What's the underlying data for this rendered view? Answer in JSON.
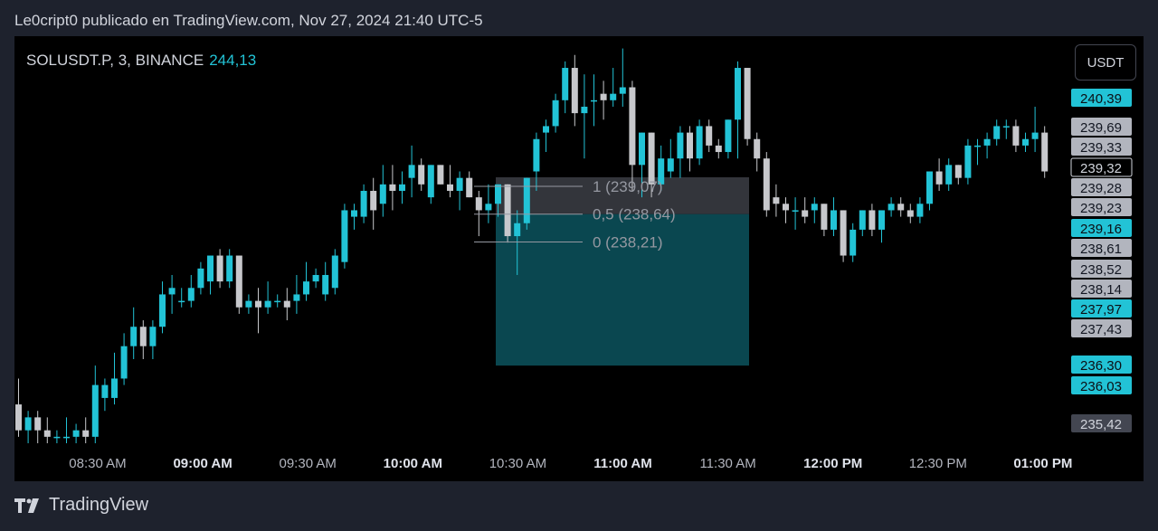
{
  "header": {
    "text": "Le0cript0 publicado en TradingView.com, Nov 27, 2024 21:40 UTC-5"
  },
  "symbol": {
    "name": "SOLUSDT.P, 3, BINANCE",
    "price": "244,13"
  },
  "currency_button": "USDT",
  "footer": {
    "brand": "TradingView"
  },
  "colors": {
    "up": "#22c3d6",
    "down": "#c7c8cc",
    "background": "#000000",
    "frame": "#1e222d"
  },
  "chart_data": {
    "type": "candlestick",
    "ylim": [
      235.1,
      241.25
    ],
    "x_ticks": [
      {
        "label": "08:30 AM",
        "bold": false
      },
      {
        "label": "09:00 AM",
        "bold": true
      },
      {
        "label": "09:30 AM",
        "bold": false
      },
      {
        "label": "10:00 AM",
        "bold": true
      },
      {
        "label": "10:30 AM",
        "bold": false
      },
      {
        "label": "11:00 AM",
        "bold": true
      },
      {
        "label": "11:30 AM",
        "bold": false
      },
      {
        "label": "12:00 PM",
        "bold": true
      },
      {
        "label": "12:30 PM",
        "bold": false
      },
      {
        "label": "01:00 PM",
        "bold": true
      }
    ],
    "price_labels": [
      {
        "value": "240,39",
        "style": "up"
      },
      {
        "value": "239,69",
        "style": "down"
      },
      {
        "value": "239,33",
        "style": "down"
      },
      {
        "value": "239,32",
        "style": "current"
      },
      {
        "value": "239,28",
        "style": "down"
      },
      {
        "value": "239,23",
        "style": "down"
      },
      {
        "value": "239,16",
        "style": "up"
      },
      {
        "value": "238,61",
        "style": "down"
      },
      {
        "value": "238,52",
        "style": "down"
      },
      {
        "value": "238,14",
        "style": "down"
      },
      {
        "value": "237,97",
        "style": "up"
      },
      {
        "value": "237,43",
        "style": "down"
      },
      {
        "value": "236,30",
        "style": "up"
      },
      {
        "value": "236,03",
        "style": "up"
      },
      {
        "value": "235,42",
        "style": "dark"
      }
    ],
    "fibonacci": [
      {
        "label": "1 (239,07)",
        "price": 239.07
      },
      {
        "label": "0,5 (238,64)",
        "price": 238.64
      },
      {
        "label": "0 (238,21)",
        "price": 238.21
      }
    ],
    "candles": [
      {
        "o": 235.7,
        "h": 236.1,
        "l": 235.2,
        "c": 235.3
      },
      {
        "o": 235.3,
        "h": 235.6,
        "l": 235.1,
        "c": 235.5
      },
      {
        "o": 235.5,
        "h": 235.6,
        "l": 235.1,
        "c": 235.3
      },
      {
        "o": 235.3,
        "h": 235.5,
        "l": 235.1,
        "c": 235.2
      },
      {
        "o": 235.2,
        "h": 235.3,
        "l": 235.1,
        "c": 235.2
      },
      {
        "o": 235.2,
        "h": 235.5,
        "l": 235.1,
        "c": 235.2
      },
      {
        "o": 235.2,
        "h": 235.4,
        "l": 235.1,
        "c": 235.3
      },
      {
        "o": 235.3,
        "h": 235.5,
        "l": 235.1,
        "c": 235.2
      },
      {
        "o": 235.2,
        "h": 236.3,
        "l": 235.1,
        "c": 236.0
      },
      {
        "o": 235.8,
        "h": 236.1,
        "l": 235.6,
        "c": 236.0
      },
      {
        "o": 235.8,
        "h": 236.5,
        "l": 235.7,
        "c": 236.1
      },
      {
        "o": 236.1,
        "h": 236.8,
        "l": 236.0,
        "c": 236.6
      },
      {
        "o": 236.6,
        "h": 237.2,
        "l": 236.4,
        "c": 236.9
      },
      {
        "o": 236.9,
        "h": 237.0,
        "l": 236.4,
        "c": 236.6
      },
      {
        "o": 236.6,
        "h": 237.0,
        "l": 236.4,
        "c": 236.9
      },
      {
        "o": 236.9,
        "h": 237.6,
        "l": 236.8,
        "c": 237.4
      },
      {
        "o": 237.4,
        "h": 237.7,
        "l": 237.1,
        "c": 237.5
      },
      {
        "o": 237.3,
        "h": 237.5,
        "l": 237.2,
        "c": 237.3
      },
      {
        "o": 237.3,
        "h": 237.7,
        "l": 237.2,
        "c": 237.5
      },
      {
        "o": 237.5,
        "h": 237.9,
        "l": 237.4,
        "c": 237.8
      },
      {
        "o": 237.6,
        "h": 238.0,
        "l": 237.4,
        "c": 238.0
      },
      {
        "o": 238.0,
        "h": 238.1,
        "l": 237.5,
        "c": 237.6
      },
      {
        "o": 237.6,
        "h": 238.1,
        "l": 237.5,
        "c": 238.0
      },
      {
        "o": 238.0,
        "h": 238.0,
        "l": 237.1,
        "c": 237.2
      },
      {
        "o": 237.2,
        "h": 237.4,
        "l": 237.1,
        "c": 237.3
      },
      {
        "o": 237.3,
        "h": 237.5,
        "l": 236.8,
        "c": 237.2
      },
      {
        "o": 237.2,
        "h": 237.6,
        "l": 237.1,
        "c": 237.3
      },
      {
        "o": 237.3,
        "h": 237.4,
        "l": 237.2,
        "c": 237.3
      },
      {
        "o": 237.3,
        "h": 237.5,
        "l": 237.0,
        "c": 237.2
      },
      {
        "o": 237.3,
        "h": 237.7,
        "l": 237.1,
        "c": 237.4
      },
      {
        "o": 237.4,
        "h": 237.9,
        "l": 237.3,
        "c": 237.6
      },
      {
        "o": 237.6,
        "h": 237.8,
        "l": 237.5,
        "c": 237.7
      },
      {
        "o": 237.4,
        "h": 237.9,
        "l": 237.3,
        "c": 237.7
      },
      {
        "o": 237.5,
        "h": 238.1,
        "l": 237.4,
        "c": 238.0
      },
      {
        "o": 237.9,
        "h": 238.8,
        "l": 237.8,
        "c": 238.7
      },
      {
        "o": 238.6,
        "h": 238.8,
        "l": 238.4,
        "c": 238.7
      },
      {
        "o": 238.6,
        "h": 239.1,
        "l": 238.5,
        "c": 239.0
      },
      {
        "o": 239.0,
        "h": 239.2,
        "l": 238.4,
        "c": 238.7
      },
      {
        "o": 238.8,
        "h": 239.4,
        "l": 238.6,
        "c": 239.1
      },
      {
        "o": 239.1,
        "h": 239.4,
        "l": 238.7,
        "c": 239.0
      },
      {
        "o": 239.0,
        "h": 239.3,
        "l": 238.8,
        "c": 239.1
      },
      {
        "o": 239.2,
        "h": 239.7,
        "l": 238.9,
        "c": 239.4
      },
      {
        "o": 239.4,
        "h": 239.5,
        "l": 239.0,
        "c": 239.1
      },
      {
        "o": 238.9,
        "h": 239.4,
        "l": 238.8,
        "c": 239.4
      },
      {
        "o": 239.4,
        "h": 239.4,
        "l": 239.1,
        "c": 239.1
      },
      {
        "o": 239.1,
        "h": 239.4,
        "l": 238.9,
        "c": 239.0
      },
      {
        "o": 239.0,
        "h": 239.3,
        "l": 238.7,
        "c": 239.2
      },
      {
        "o": 239.2,
        "h": 239.3,
        "l": 238.9,
        "c": 238.9
      },
      {
        "o": 238.9,
        "h": 239.0,
        "l": 238.3,
        "c": 238.7
      },
      {
        "o": 238.7,
        "h": 239.1,
        "l": 238.5,
        "c": 238.8
      },
      {
        "o": 238.8,
        "h": 239.1,
        "l": 238.6,
        "c": 239.1
      },
      {
        "o": 239.1,
        "h": 239.1,
        "l": 238.2,
        "c": 238.3
      },
      {
        "o": 238.3,
        "h": 238.7,
        "l": 237.7,
        "c": 238.5
      },
      {
        "o": 238.5,
        "h": 239.2,
        "l": 238.4,
        "c": 239.2
      },
      {
        "o": 239.3,
        "h": 239.9,
        "l": 239.0,
        "c": 239.8
      },
      {
        "o": 239.9,
        "h": 240.1,
        "l": 239.6,
        "c": 240.0
      },
      {
        "o": 240.0,
        "h": 240.5,
        "l": 239.9,
        "c": 240.4
      },
      {
        "o": 240.4,
        "h": 241.0,
        "l": 240.2,
        "c": 240.9
      },
      {
        "o": 240.9,
        "h": 241.1,
        "l": 240.0,
        "c": 240.2
      },
      {
        "o": 240.2,
        "h": 240.8,
        "l": 239.5,
        "c": 240.3
      },
      {
        "o": 240.4,
        "h": 240.8,
        "l": 240.0,
        "c": 240.4
      },
      {
        "o": 240.5,
        "h": 240.7,
        "l": 240.1,
        "c": 240.4
      },
      {
        "o": 240.4,
        "h": 240.9,
        "l": 240.3,
        "c": 240.5
      },
      {
        "o": 240.5,
        "h": 241.2,
        "l": 240.3,
        "c": 240.6
      },
      {
        "o": 240.6,
        "h": 240.7,
        "l": 239.0,
        "c": 239.4
      },
      {
        "o": 239.4,
        "h": 239.9,
        "l": 238.9,
        "c": 239.9
      },
      {
        "o": 239.9,
        "h": 239.9,
        "l": 238.9,
        "c": 239.1
      },
      {
        "o": 239.1,
        "h": 239.7,
        "l": 239.0,
        "c": 239.5
      },
      {
        "o": 239.3,
        "h": 239.8,
        "l": 239.2,
        "c": 239.5
      },
      {
        "o": 239.5,
        "h": 240.0,
        "l": 239.2,
        "c": 239.9
      },
      {
        "o": 239.9,
        "h": 240.0,
        "l": 239.3,
        "c": 239.5
      },
      {
        "o": 239.5,
        "h": 240.1,
        "l": 239.4,
        "c": 240.0
      },
      {
        "o": 240.0,
        "h": 240.1,
        "l": 239.6,
        "c": 239.7
      },
      {
        "o": 239.7,
        "h": 239.8,
        "l": 239.5,
        "c": 239.6
      },
      {
        "o": 239.6,
        "h": 240.1,
        "l": 239.5,
        "c": 240.1
      },
      {
        "o": 240.1,
        "h": 241.0,
        "l": 239.5,
        "c": 240.9
      },
      {
        "o": 240.9,
        "h": 240.9,
        "l": 239.7,
        "c": 239.8
      },
      {
        "o": 239.8,
        "h": 239.9,
        "l": 239.3,
        "c": 239.5
      },
      {
        "o": 239.5,
        "h": 239.6,
        "l": 238.6,
        "c": 238.7
      },
      {
        "o": 238.9,
        "h": 239.1,
        "l": 238.6,
        "c": 238.8
      },
      {
        "o": 238.8,
        "h": 238.9,
        "l": 238.5,
        "c": 238.7
      },
      {
        "o": 238.7,
        "h": 238.9,
        "l": 238.4,
        "c": 238.7
      },
      {
        "o": 238.7,
        "h": 238.9,
        "l": 238.5,
        "c": 238.6
      },
      {
        "o": 238.7,
        "h": 238.9,
        "l": 238.5,
        "c": 238.8
      },
      {
        "o": 238.8,
        "h": 238.8,
        "l": 238.3,
        "c": 238.4
      },
      {
        "o": 238.4,
        "h": 238.9,
        "l": 238.3,
        "c": 238.7
      },
      {
        "o": 238.7,
        "h": 238.7,
        "l": 237.9,
        "c": 238.0
      },
      {
        "o": 238.0,
        "h": 238.5,
        "l": 237.9,
        "c": 238.4
      },
      {
        "o": 238.4,
        "h": 238.7,
        "l": 238.3,
        "c": 238.7
      },
      {
        "o": 238.7,
        "h": 238.8,
        "l": 238.3,
        "c": 238.4
      },
      {
        "o": 238.4,
        "h": 238.7,
        "l": 238.2,
        "c": 238.7
      },
      {
        "o": 238.7,
        "h": 238.9,
        "l": 238.6,
        "c": 238.8
      },
      {
        "o": 238.8,
        "h": 238.9,
        "l": 238.6,
        "c": 238.7
      },
      {
        "o": 238.7,
        "h": 238.8,
        "l": 238.5,
        "c": 238.6
      },
      {
        "o": 238.6,
        "h": 238.9,
        "l": 238.5,
        "c": 238.8
      },
      {
        "o": 238.8,
        "h": 239.3,
        "l": 238.7,
        "c": 239.3
      },
      {
        "o": 239.3,
        "h": 239.5,
        "l": 239.0,
        "c": 239.1
      },
      {
        "o": 239.1,
        "h": 239.5,
        "l": 239.0,
        "c": 239.4
      },
      {
        "o": 239.4,
        "h": 239.4,
        "l": 239.1,
        "c": 239.2
      },
      {
        "o": 239.2,
        "h": 239.8,
        "l": 239.1,
        "c": 239.7
      },
      {
        "o": 239.7,
        "h": 239.8,
        "l": 239.4,
        "c": 239.7
      },
      {
        "o": 239.7,
        "h": 239.9,
        "l": 239.5,
        "c": 239.8
      },
      {
        "o": 239.8,
        "h": 240.1,
        "l": 239.7,
        "c": 240.0
      },
      {
        "o": 240.0,
        "h": 240.1,
        "l": 239.8,
        "c": 240.0
      },
      {
        "o": 240.0,
        "h": 240.1,
        "l": 239.6,
        "c": 239.7
      },
      {
        "o": 239.7,
        "h": 239.9,
        "l": 239.6,
        "c": 239.8
      },
      {
        "o": 239.8,
        "h": 240.3,
        "l": 239.6,
        "c": 239.9
      },
      {
        "o": 239.9,
        "h": 240.0,
        "l": 239.2,
        "c": 239.3
      }
    ]
  }
}
